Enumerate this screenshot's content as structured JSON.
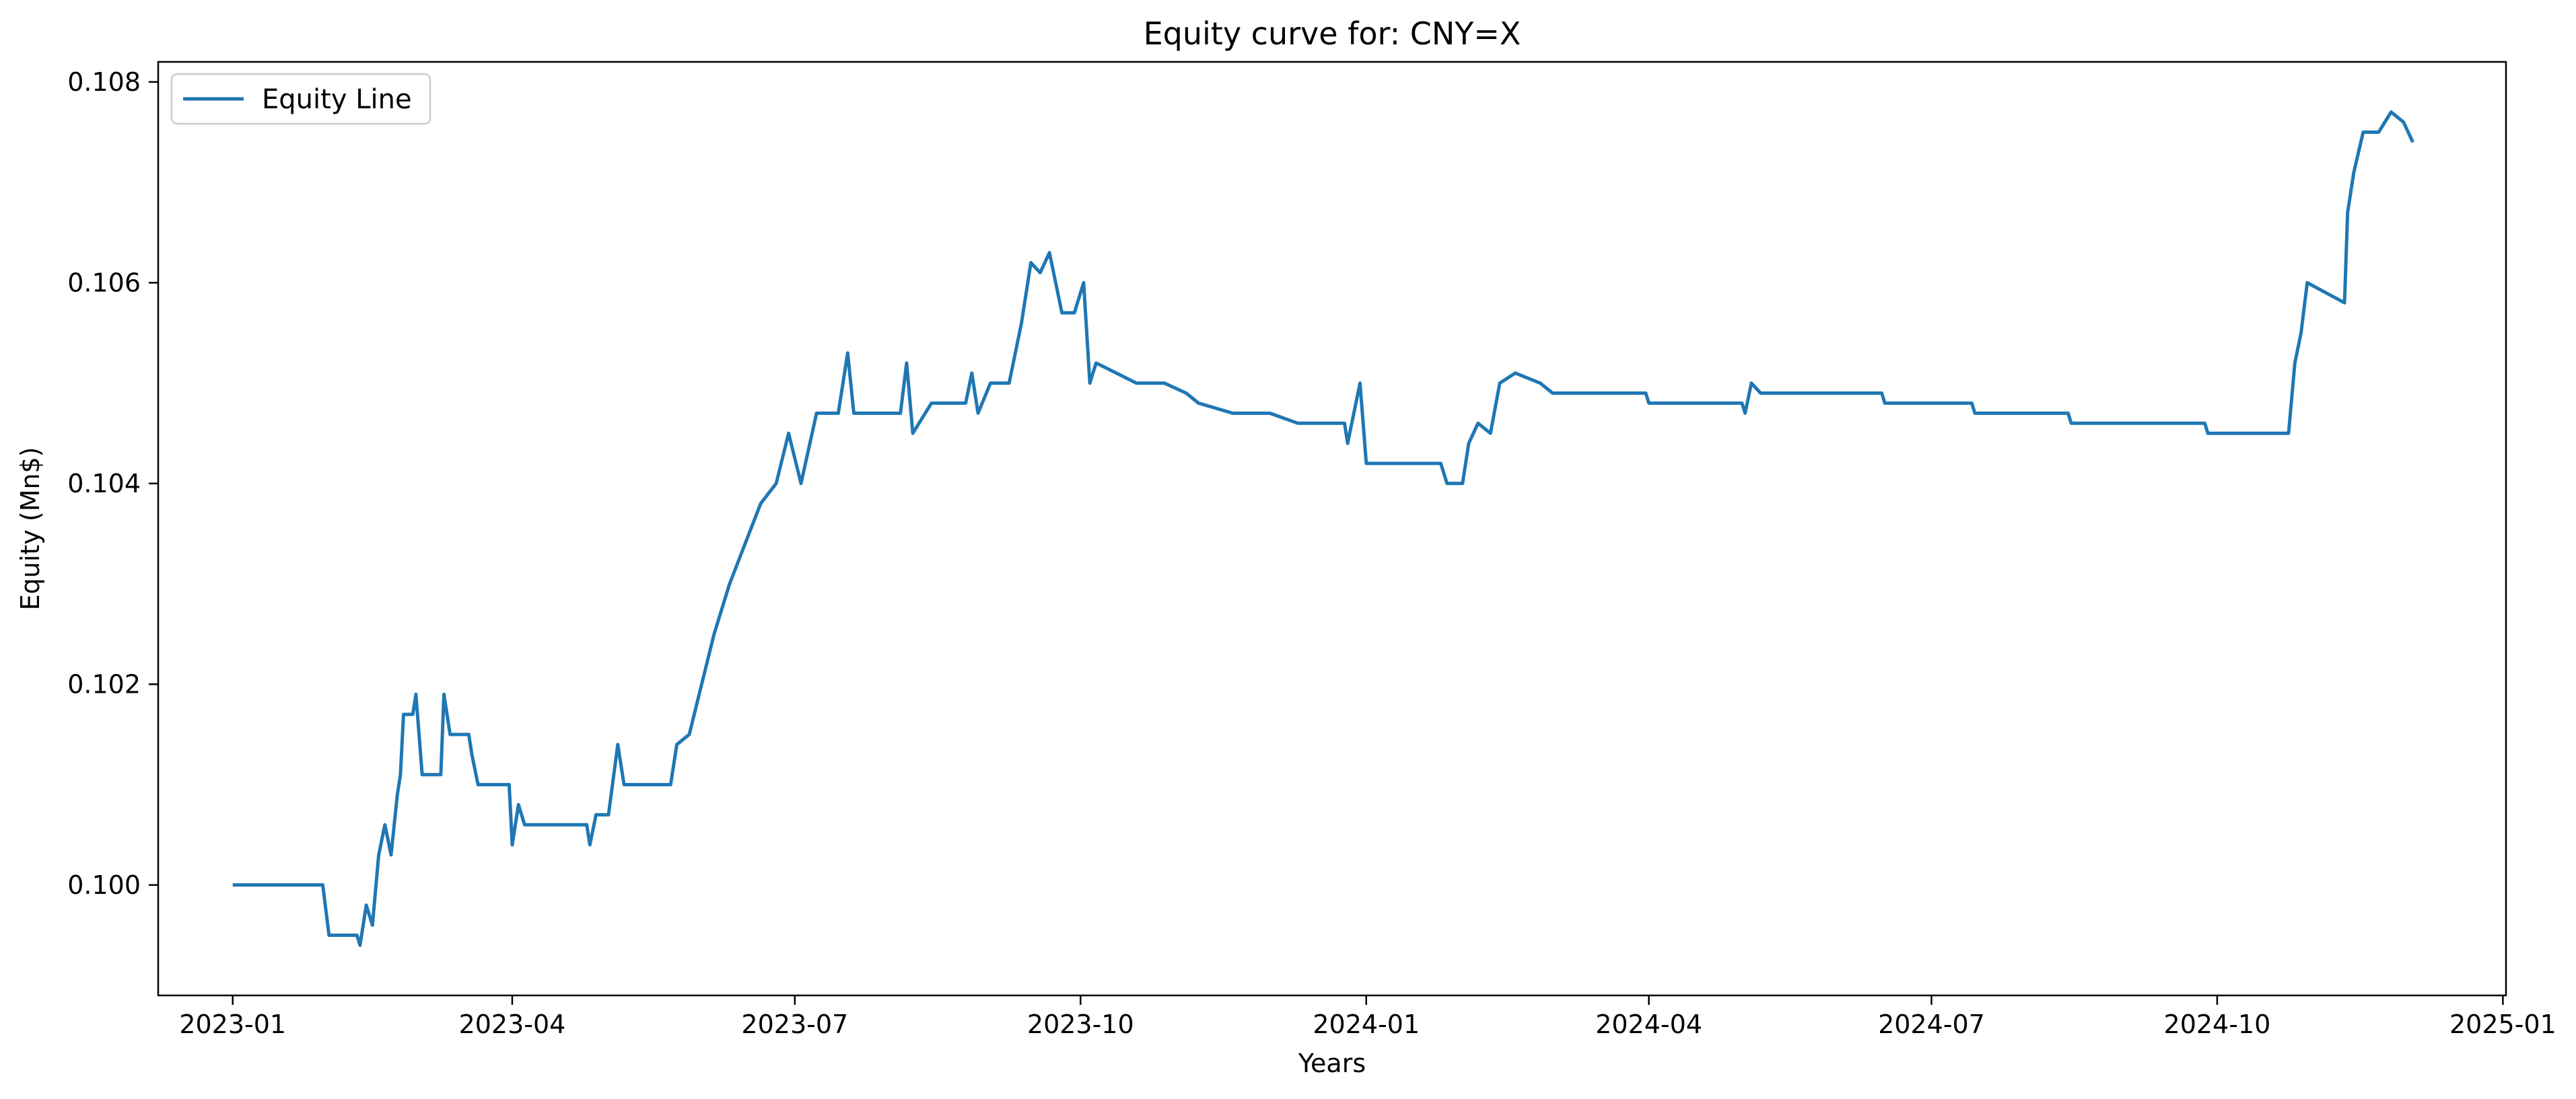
{
  "chart_data": {
    "type": "line",
    "title": "Equity curve for: CNY=X",
    "xlabel": "Years",
    "ylabel": "Equity (Mn$)",
    "xlim": [
      "2022-12-08",
      "2025-01-02"
    ],
    "ylim": [
      0.0989,
      0.1082
    ],
    "x_ticks": [
      "2023-01",
      "2023-04",
      "2023-07",
      "2023-10",
      "2024-01",
      "2024-04",
      "2024-07",
      "2024-10",
      "2025-01"
    ],
    "x_tick_labels": [
      "2023-01",
      "2023-04",
      "2023-07",
      "2023-10",
      "2024-01",
      "2024-04",
      "2024-07",
      "2024-10",
      "2025-01"
    ],
    "y_ticks": [
      0.1,
      0.102,
      0.104,
      0.106,
      0.108
    ],
    "y_tick_labels": [
      "0.100",
      "0.102",
      "0.104",
      "0.106",
      "0.108"
    ],
    "grid": false,
    "legend": {
      "placement": "upper left",
      "entries": [
        "Equity Line"
      ]
    },
    "series": [
      {
        "name": "Equity Line",
        "color": "#1f77b4",
        "points": [
          [
            "2023-01-01",
            0.1
          ],
          [
            "2023-01-30",
            0.1
          ],
          [
            "2023-02-01",
            0.0995
          ],
          [
            "2023-02-10",
            0.0995
          ],
          [
            "2023-02-11",
            0.0994
          ],
          [
            "2023-02-13",
            0.0998
          ],
          [
            "2023-02-15",
            0.0996
          ],
          [
            "2023-02-17",
            0.1003
          ],
          [
            "2023-02-19",
            0.1006
          ],
          [
            "2023-02-21",
            0.1003
          ],
          [
            "2023-02-23",
            0.1009
          ],
          [
            "2023-02-24",
            0.1011
          ],
          [
            "2023-02-25",
            0.1017
          ],
          [
            "2023-02-28",
            0.1017
          ],
          [
            "2023-03-01",
            0.1019
          ],
          [
            "2023-03-03",
            0.1011
          ],
          [
            "2023-03-09",
            0.1011
          ],
          [
            "2023-03-10",
            0.1019
          ],
          [
            "2023-03-12",
            0.1015
          ],
          [
            "2023-03-18",
            0.1015
          ],
          [
            "2023-03-19",
            0.1013
          ],
          [
            "2023-03-21",
            0.101
          ],
          [
            "2023-03-31",
            0.101
          ],
          [
            "2023-04-01",
            0.1004
          ],
          [
            "2023-04-03",
            0.1008
          ],
          [
            "2023-04-05",
            0.1006
          ],
          [
            "2023-04-09",
            0.1006
          ],
          [
            "2023-04-25",
            0.1006
          ],
          [
            "2023-04-26",
            0.1004
          ],
          [
            "2023-04-28",
            0.1007
          ],
          [
            "2023-05-02",
            0.1007
          ],
          [
            "2023-05-05",
            0.1014
          ],
          [
            "2023-05-07",
            0.101
          ],
          [
            "2023-05-22",
            0.101
          ],
          [
            "2023-05-24",
            0.1014
          ],
          [
            "2023-05-28",
            0.1015
          ],
          [
            "2023-06-01",
            0.102
          ],
          [
            "2023-06-05",
            0.1025
          ],
          [
            "2023-06-10",
            0.103
          ],
          [
            "2023-06-15",
            0.1034
          ],
          [
            "2023-06-20",
            0.1038
          ],
          [
            "2023-06-25",
            0.104
          ],
          [
            "2023-06-29",
            0.1045
          ],
          [
            "2023-07-03",
            0.104
          ],
          [
            "2023-07-08",
            0.1047
          ],
          [
            "2023-07-15",
            0.1047
          ],
          [
            "2023-07-18",
            0.1053
          ],
          [
            "2023-07-20",
            0.1047
          ],
          [
            "2023-08-04",
            0.1047
          ],
          [
            "2023-08-06",
            0.1052
          ],
          [
            "2023-08-08",
            0.1045
          ],
          [
            "2023-08-14",
            0.1048
          ],
          [
            "2023-08-25",
            0.1048
          ],
          [
            "2023-08-27",
            0.1051
          ],
          [
            "2023-08-29",
            0.1047
          ],
          [
            "2023-09-02",
            0.105
          ],
          [
            "2023-09-08",
            0.105
          ],
          [
            "2023-09-12",
            0.1056
          ],
          [
            "2023-09-15",
            0.1062
          ],
          [
            "2023-09-18",
            0.1061
          ],
          [
            "2023-09-21",
            0.1063
          ],
          [
            "2023-09-25",
            0.1057
          ],
          [
            "2023-09-29",
            0.1057
          ],
          [
            "2023-10-02",
            0.106
          ],
          [
            "2023-10-04",
            0.105
          ],
          [
            "2023-10-06",
            0.1052
          ],
          [
            "2023-10-19",
            0.105
          ],
          [
            "2023-10-28",
            0.105
          ],
          [
            "2023-11-04",
            0.1049
          ],
          [
            "2023-11-08",
            0.1048
          ],
          [
            "2023-11-19",
            0.1047
          ],
          [
            "2023-12-01",
            0.1047
          ],
          [
            "2023-12-10",
            0.1046
          ],
          [
            "2023-12-25",
            0.1046
          ],
          [
            "2023-12-26",
            0.1044
          ],
          [
            "2023-12-30",
            0.105
          ],
          [
            "2024-01-01",
            0.1042
          ],
          [
            "2024-01-25",
            0.1042
          ],
          [
            "2024-01-27",
            0.104
          ],
          [
            "2024-02-01",
            0.104
          ],
          [
            "2024-02-03",
            0.1044
          ],
          [
            "2024-02-06",
            0.1046
          ],
          [
            "2024-02-10",
            0.1045
          ],
          [
            "2024-02-13",
            0.105
          ],
          [
            "2024-02-18",
            0.1051
          ],
          [
            "2024-02-26",
            0.105
          ],
          [
            "2024-03-01",
            0.1049
          ],
          [
            "2024-03-31",
            0.1049
          ],
          [
            "2024-04-01",
            0.1048
          ],
          [
            "2024-05-01",
            0.1048
          ],
          [
            "2024-05-02",
            0.1047
          ],
          [
            "2024-05-04",
            0.105
          ],
          [
            "2024-05-07",
            0.1049
          ],
          [
            "2024-06-01",
            0.1049
          ],
          [
            "2024-06-15",
            0.1049
          ],
          [
            "2024-06-16",
            0.1048
          ],
          [
            "2024-07-14",
            0.1048
          ],
          [
            "2024-07-15",
            0.1047
          ],
          [
            "2024-08-14",
            0.1047
          ],
          [
            "2024-08-15",
            0.1046
          ],
          [
            "2024-09-27",
            0.1046
          ],
          [
            "2024-09-28",
            0.1045
          ],
          [
            "2024-10-24",
            0.1045
          ],
          [
            "2024-10-26",
            0.1052
          ],
          [
            "2024-10-28",
            0.1055
          ],
          [
            "2024-10-30",
            0.106
          ],
          [
            "2024-11-11",
            0.1058
          ],
          [
            "2024-11-12",
            0.1067
          ],
          [
            "2024-11-14",
            0.1071
          ],
          [
            "2024-11-17",
            0.1075
          ],
          [
            "2024-11-22",
            0.1075
          ],
          [
            "2024-11-26",
            0.1077
          ],
          [
            "2024-11-30",
            0.1076
          ],
          [
            "2024-12-03",
            0.1074
          ]
        ]
      }
    ]
  }
}
